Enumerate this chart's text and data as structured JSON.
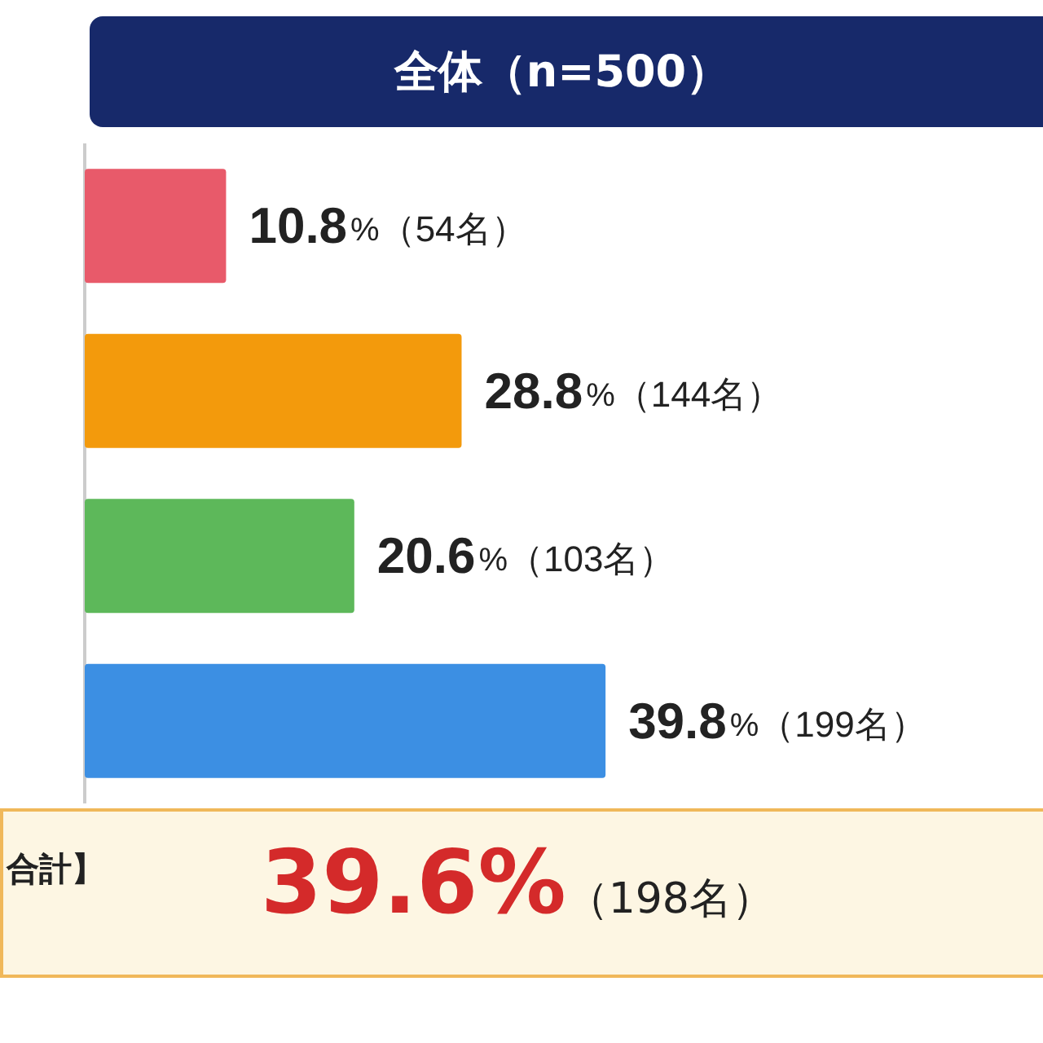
{
  "chart_data": {
    "type": "bar",
    "orientation": "horizontal",
    "title": "全体（n=500）",
    "categories": [
      null,
      null,
      null,
      null
    ],
    "values": [
      10.8,
      28.8,
      20.6,
      39.8
    ],
    "colors": [
      "#e85a6a",
      "#f39a0c",
      "#5db85a",
      "#3c8fe3"
    ],
    "value_labels": [
      "10.8%（54名）",
      "28.8%（144名）",
      "20.6%（103名）",
      "39.8%（199名）"
    ],
    "annotations": [
      "合計】",
      "39.6%（198名）"
    ]
  }
}
